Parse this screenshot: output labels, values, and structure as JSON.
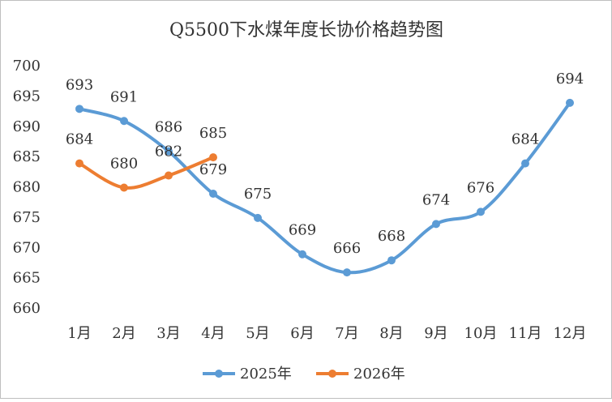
{
  "chart_data": {
    "type": "line",
    "title": "Q5500下水煤年度长协价格趋势图",
    "categories": [
      "1月",
      "2月",
      "3月",
      "4月",
      "5月",
      "6月",
      "7月",
      "8月",
      "9月",
      "10月",
      "11月",
      "12月"
    ],
    "series": [
      {
        "name": "2025年",
        "color": "#5b9bd5",
        "values": [
          693,
          691,
          686,
          679,
          675,
          669,
          666,
          668,
          674,
          676,
          684,
          694
        ]
      },
      {
        "name": "2026年",
        "color": "#ed7d31",
        "values": [
          684,
          680,
          682,
          685,
          null,
          null,
          null,
          null,
          null,
          null,
          null,
          null
        ]
      }
    ],
    "ylim": [
      660,
      700
    ],
    "yticks": [
      660,
      665,
      670,
      675,
      680,
      685,
      690,
      695,
      700
    ],
    "grid": false,
    "smooth": true,
    "legend": "bottom"
  }
}
